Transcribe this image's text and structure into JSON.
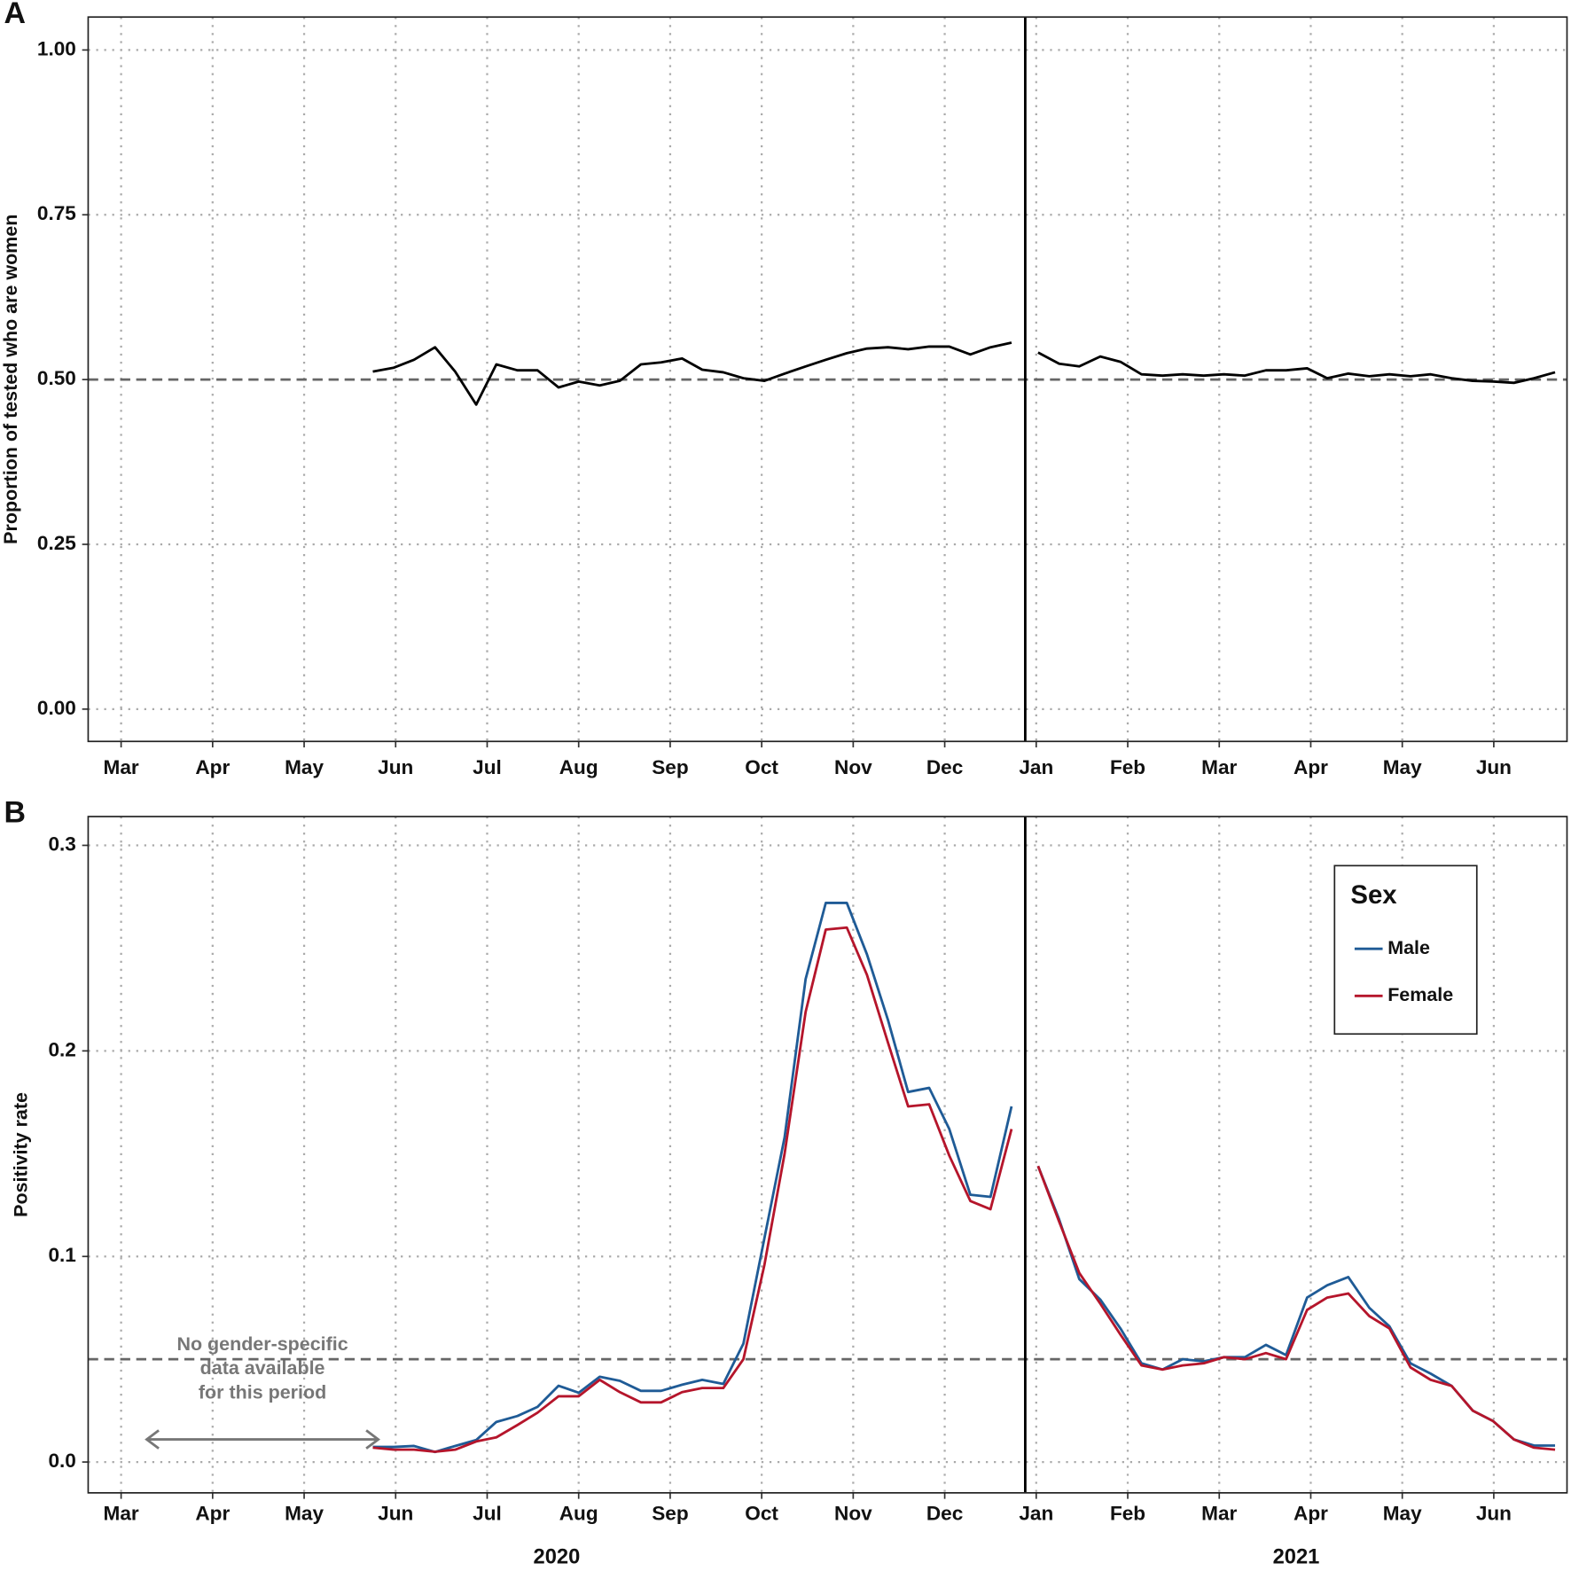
{
  "chart_data": [
    {
      "type": "line",
      "label": "A",
      "ylabel": "Proportion of tested who are women",
      "x": [
        5.75,
        5.98,
        6.2,
        6.43,
        6.65,
        6.88,
        7.1,
        7.33,
        7.55,
        7.78,
        8.0,
        8.23,
        8.45,
        8.68,
        8.9,
        9.13,
        9.35,
        9.58,
        9.8,
        10.03,
        10.25,
        10.48,
        10.7,
        10.93,
        11.15,
        11.38,
        11.6,
        11.83,
        12.05,
        12.28,
        12.5,
        12.73,
        12.88,
        13.02,
        13.25,
        13.47,
        13.7,
        13.92,
        14.15,
        14.38,
        14.6,
        14.83,
        15.05,
        15.28,
        15.51,
        15.73,
        15.96,
        16.18,
        16.41,
        16.64,
        16.86,
        17.09,
        17.31,
        17.54,
        17.77,
        17.99,
        18.22,
        18.44,
        18.67
      ],
      "values": [
        0.512,
        0.518,
        0.53,
        0.549,
        0.512,
        0.462,
        0.523,
        0.514,
        0.514,
        0.488,
        0.497,
        0.491,
        0.498,
        0.523,
        0.526,
        0.532,
        0.515,
        0.511,
        0.502,
        0.498,
        0.509,
        0.52,
        0.53,
        0.54,
        0.547,
        0.549,
        0.546,
        0.55,
        0.55,
        0.538,
        0.549,
        0.556,
        null,
        0.541,
        0.524,
        0.52,
        0.535,
        0.527,
        0.508,
        0.506,
        0.508,
        0.506,
        0.508,
        0.506,
        0.514,
        0.514,
        0.517,
        0.502,
        0.509,
        0.505,
        0.508,
        0.505,
        0.508,
        0.502,
        0.498,
        0.497,
        0.495,
        0.502,
        0.511
      ],
      "color": "#000000",
      "xlim": [
        2.64,
        18.8
      ],
      "xticks": [
        {
          "value": 3,
          "label": "Mar"
        },
        {
          "value": 4,
          "label": "Apr"
        },
        {
          "value": 5,
          "label": "May"
        },
        {
          "value": 6,
          "label": "Jun"
        },
        {
          "value": 7,
          "label": "Jul"
        },
        {
          "value": 8,
          "label": "Aug"
        },
        {
          "value": 9,
          "label": "Sep"
        },
        {
          "value": 10,
          "label": "Oct"
        },
        {
          "value": 11,
          "label": "Nov"
        },
        {
          "value": 12,
          "label": "Dec"
        },
        {
          "value": 13,
          "label": "Jan"
        },
        {
          "value": 14,
          "label": "Feb"
        },
        {
          "value": 15,
          "label": "Mar"
        },
        {
          "value": 16,
          "label": "Apr"
        },
        {
          "value": 17,
          "label": "May"
        },
        {
          "value": 18,
          "label": "Jun"
        }
      ],
      "ylim": [
        -0.049,
        1.05
      ],
      "yticks": [
        {
          "value": 0,
          "label": "0.00"
        },
        {
          "value": 0.25,
          "label": "0.25"
        },
        {
          "value": 0.5,
          "label": "0.50"
        },
        {
          "value": 0.75,
          "label": "0.75"
        },
        {
          "value": 1,
          "label": "1.00"
        }
      ],
      "hline": 0.5,
      "vline": 12.88,
      "grid": true
    },
    {
      "type": "line",
      "label": "B",
      "ylabel": "Positivity rate",
      "x": [
        5.75,
        5.98,
        6.2,
        6.43,
        6.65,
        6.88,
        7.1,
        7.33,
        7.55,
        7.78,
        8.0,
        8.23,
        8.45,
        8.68,
        8.9,
        9.13,
        9.35,
        9.58,
        9.8,
        10.03,
        10.25,
        10.48,
        10.7,
        10.93,
        11.15,
        11.38,
        11.6,
        11.83,
        12.05,
        12.28,
        12.5,
        12.73,
        12.88,
        13.02,
        13.25,
        13.47,
        13.7,
        13.92,
        14.15,
        14.38,
        14.6,
        14.83,
        15.05,
        15.28,
        15.51,
        15.73,
        15.96,
        16.18,
        16.41,
        16.64,
        16.86,
        17.09,
        17.31,
        17.54,
        17.77,
        17.99,
        18.22,
        18.44,
        18.67
      ],
      "series": [
        {
          "name": "Male",
          "color": "#1f5b96",
          "values": [
            0.0073,
            0.0073,
            0.0078,
            0.0049,
            0.0078,
            0.0107,
            0.0195,
            0.0224,
            0.0268,
            0.0371,
            0.0337,
            0.0415,
            0.0395,
            0.0346,
            0.0346,
            0.0376,
            0.04,
            0.038,
            0.0576,
            0.109,
            0.158,
            0.235,
            0.272,
            0.272,
            0.247,
            0.215,
            0.18,
            0.182,
            0.162,
            0.13,
            0.129,
            0.173,
            null,
            0.144,
            0.118,
            0.089,
            0.079,
            0.065,
            0.048,
            0.045,
            0.05,
            0.049,
            0.051,
            0.051,
            0.057,
            0.052,
            0.08,
            0.086,
            0.09,
            0.075,
            0.066,
            0.048,
            0.043,
            0.037,
            0.025,
            0.02,
            0.011,
            0.008,
            0.008
          ]
        },
        {
          "name": "Female",
          "color": "#b5152b",
          "values": [
            0.007,
            0.006,
            0.006,
            0.005,
            0.006,
            0.01,
            0.012,
            0.018,
            0.024,
            0.032,
            0.032,
            0.04,
            0.034,
            0.029,
            0.029,
            0.034,
            0.036,
            0.036,
            0.05,
            0.096,
            0.15,
            0.219,
            0.259,
            0.26,
            0.237,
            0.204,
            0.173,
            0.174,
            0.149,
            0.127,
            0.123,
            0.162,
            null,
            0.144,
            0.117,
            0.092,
            0.077,
            0.062,
            0.047,
            0.045,
            0.047,
            0.048,
            0.051,
            0.05,
            0.053,
            0.05,
            0.074,
            0.08,
            0.082,
            0.071,
            0.065,
            0.046,
            0.04,
            0.037,
            0.025,
            0.02,
            0.011,
            0.007,
            0.006
          ]
        }
      ],
      "xlim": [
        2.64,
        18.8
      ],
      "xticks": [
        {
          "value": 3,
          "label": "Mar"
        },
        {
          "value": 4,
          "label": "Apr"
        },
        {
          "value": 5,
          "label": "May"
        },
        {
          "value": 6,
          "label": "Jun"
        },
        {
          "value": 7,
          "label": "Jul"
        },
        {
          "value": 8,
          "label": "Aug"
        },
        {
          "value": 9,
          "label": "Sep"
        },
        {
          "value": 10,
          "label": "Oct"
        },
        {
          "value": 11,
          "label": "Nov"
        },
        {
          "value": 12,
          "label": "Dec"
        },
        {
          "value": 13,
          "label": "Jan"
        },
        {
          "value": 14,
          "label": "Feb"
        },
        {
          "value": 15,
          "label": "Mar"
        },
        {
          "value": 16,
          "label": "Apr"
        },
        {
          "value": 17,
          "label": "May"
        },
        {
          "value": 18,
          "label": "Jun"
        }
      ],
      "ylim": [
        -0.015,
        0.314
      ],
      "yticks": [
        {
          "value": 0,
          "label": "0.0"
        },
        {
          "value": 0.1,
          "label": "0.1"
        },
        {
          "value": 0.2,
          "label": "0.2"
        },
        {
          "value": 0.3,
          "label": "0.3"
        }
      ],
      "hline": 0.05,
      "vline": 12.88,
      "grid": true,
      "years": [
        "2020",
        "2021"
      ],
      "legend_title": "Sex",
      "legend": "upper right",
      "annotation": {
        "lines": [
          "No gender-specific",
          "data available",
          "for this period"
        ],
        "arrow_x": [
          3.28,
          5.81
        ],
        "y": 0.011
      }
    }
  ]
}
